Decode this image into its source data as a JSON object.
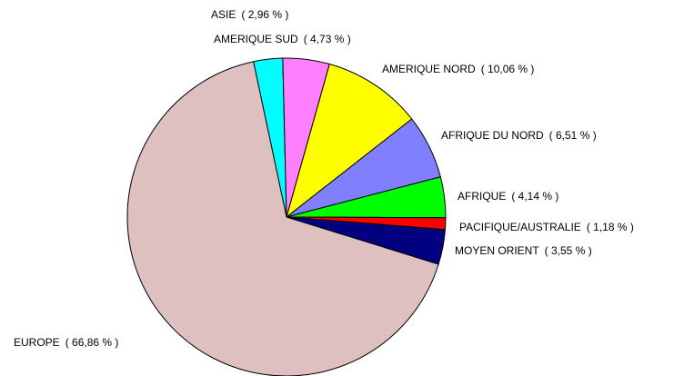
{
  "chart_data": {
    "type": "pie",
    "categories": [
      "ASIE",
      "AMERIQUE SUD",
      "AMERIQUE NORD",
      "AFRIQUE DU NORD",
      "AFRIQUE",
      "PACIFIQUE/AUSTRALIE",
      "MOYEN ORIENT",
      "EUROPE"
    ],
    "values": [
      2.96,
      4.73,
      10.06,
      6.51,
      4.14,
      1.18,
      3.55,
      66.86
    ],
    "value_labels": [
      "( 2,96 % )",
      "( 4,73 % )",
      "( 10,06 % )",
      "( 6,51 % )",
      "( 4,14 % )",
      "( 1,18 % )",
      "( 3,55 % )",
      "( 66,86 % )"
    ],
    "colors": [
      "#00ffff",
      "#ff80ff",
      "#ffff00",
      "#8080ff",
      "#00ff00",
      "#ff0000",
      "#000080",
      "#dfc0c0"
    ]
  }
}
